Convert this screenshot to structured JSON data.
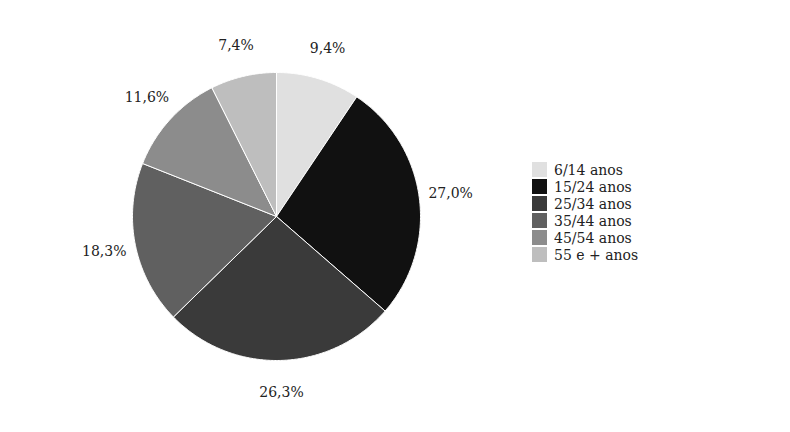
{
  "chart_data": {
    "type": "pie",
    "categories": [
      "6/14 anos",
      "15/24 anos",
      "25/34 anos",
      "35/44 anos",
      "45/54 anos",
      "55 e + anos"
    ],
    "values": [
      9.4,
      27.0,
      26.3,
      18.3,
      11.6,
      7.4
    ],
    "value_labels": [
      "9,4%",
      "27,0%",
      "26,3%",
      "18,3%",
      "11,6%",
      "7,4%"
    ],
    "colors": [
      "#e0e0e0",
      "#111111",
      "#3a3a3a",
      "#606060",
      "#8c8c8c",
      "#bebebe"
    ],
    "data_labels": true,
    "legend": "right"
  }
}
